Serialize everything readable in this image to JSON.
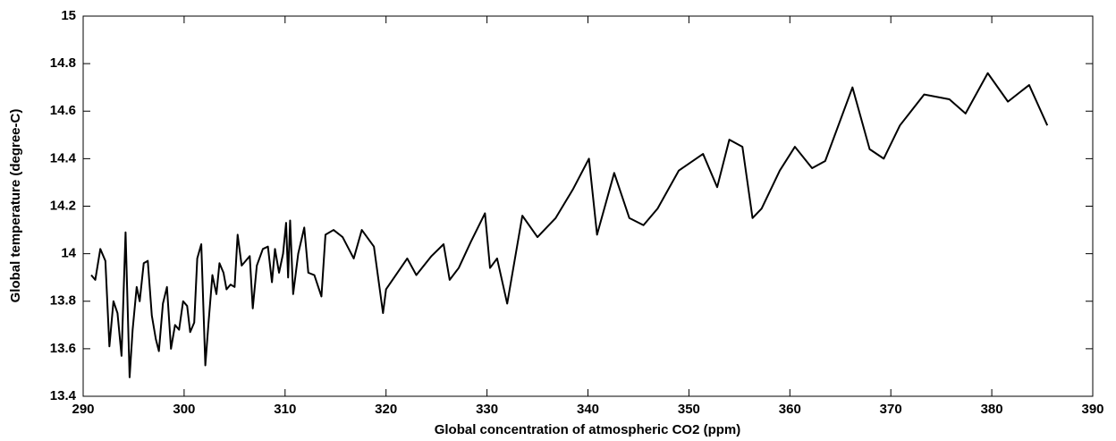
{
  "chart_data": {
    "type": "line",
    "x_label": "Global concentration of atmospheric CO2 (ppm)",
    "y_label": "Global temperature (degree-C)",
    "xlim": [
      290,
      390
    ],
    "xticks": [
      290,
      300,
      310,
      320,
      330,
      340,
      350,
      360,
      370,
      380,
      390
    ],
    "ylim": [
      13.4,
      15
    ],
    "yticks": [
      13.4,
      13.6,
      13.8,
      14,
      14.2,
      14.4,
      14.6,
      14.8,
      15
    ],
    "grid": false,
    "series": [
      {
        "color": "#000000",
        "x": [
          290.8,
          291.2,
          291.7,
          292.2,
          292.6,
          293.0,
          293.4,
          293.8,
          294.2,
          294.6,
          294.9,
          295.3,
          295.6,
          296.0,
          296.4,
          296.8,
          297.2,
          297.5,
          297.9,
          298.3,
          298.7,
          299.1,
          299.5,
          299.9,
          300.3,
          300.6,
          301.0,
          301.3,
          301.7,
          302.1,
          302.4,
          302.8,
          303.2,
          303.5,
          303.9,
          304.2,
          304.6,
          305.0,
          305.3,
          305.7,
          306.1,
          306.5,
          306.8,
          307.2,
          307.8,
          308.3,
          308.7,
          309.0,
          309.4,
          309.8,
          310.1,
          310.3,
          310.5,
          310.8,
          311.3,
          311.9,
          312.3,
          312.9,
          313.6,
          314.0,
          314.8,
          315.7,
          316.8,
          317.6,
          318.8,
          319.7,
          320.0,
          322.1,
          323.0,
          324.5,
          325.7,
          326.3,
          327.2,
          328.4,
          329.8,
          330.3,
          331.0,
          332.0,
          333.5,
          335.0,
          336.8,
          338.5,
          340.1,
          340.9,
          342.6,
          344.1,
          345.5,
          346.9,
          349.0,
          351.4,
          352.8,
          354.0,
          355.3,
          356.3,
          357.2,
          359.0,
          360.5,
          362.2,
          363.5,
          366.2,
          367.9,
          369.3,
          370.9,
          373.3,
          375.8,
          377.4,
          379.6,
          381.6,
          383.7,
          385.5
        ],
        "values": [
          13.91,
          13.89,
          14.02,
          13.97,
          13.61,
          13.8,
          13.75,
          13.57,
          14.09,
          13.48,
          13.68,
          13.86,
          13.8,
          13.96,
          13.97,
          13.74,
          13.64,
          13.59,
          13.79,
          13.86,
          13.6,
          13.7,
          13.68,
          13.8,
          13.78,
          13.67,
          13.71,
          13.98,
          14.04,
          13.53,
          13.7,
          13.91,
          13.83,
          13.96,
          13.92,
          13.85,
          13.87,
          13.86,
          14.08,
          13.95,
          13.97,
          13.99,
          13.77,
          13.95,
          14.02,
          14.03,
          13.88,
          14.02,
          13.92,
          14.0,
          14.13,
          13.9,
          14.14,
          13.83,
          14.0,
          14.11,
          13.92,
          13.91,
          13.82,
          14.08,
          14.1,
          14.07,
          13.98,
          14.1,
          14.03,
          13.75,
          13.85,
          13.98,
          13.91,
          13.99,
          14.04,
          13.89,
          13.94,
          14.05,
          14.17,
          13.94,
          13.98,
          13.79,
          14.16,
          14.07,
          14.15,
          14.27,
          14.4,
          14.08,
          14.34,
          14.15,
          14.12,
          14.19,
          14.35,
          14.42,
          14.28,
          14.48,
          14.45,
          14.15,
          14.19,
          14.35,
          14.45,
          14.36,
          14.39,
          14.7,
          14.44,
          14.4,
          14.54,
          14.67,
          14.65,
          14.59,
          14.76,
          14.64,
          14.71,
          14.54
        ]
      }
    ]
  }
}
